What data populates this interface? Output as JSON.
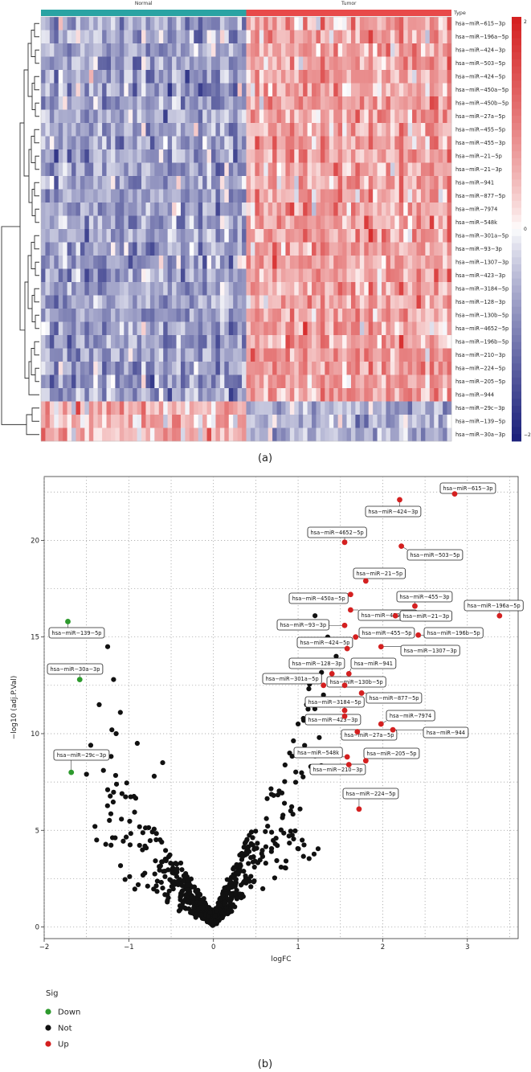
{
  "colors": {
    "normal": "#2aa3a3",
    "tumor": "#e84a4a",
    "heat_low": "#1a1f7a",
    "heat_mid": "#ffffff",
    "heat_high": "#d41f1f",
    "down": "#2e9a2e",
    "not": "#111111",
    "up": "#d42020",
    "grid": "#9a9a9a"
  },
  "chart_data": [
    {
      "type": "heatmap",
      "panel_label": "(a)",
      "annotation_track": {
        "title": "Type",
        "groups": [
          {
            "name": "Normal",
            "count": 47
          },
          {
            "name": "Tumor",
            "count": 47
          }
        ]
      },
      "rows": [
        "hsa-miR-615-3p",
        "hsa-miR-196a-5p",
        "hsa-miR-424-3p",
        "hsa-miR-503-5p",
        "hsa-miR-424-5p",
        "hsa-miR-450a-5p",
        "hsa-miR-450b-5p",
        "hsa-miR-27a-5p",
        "hsa-miR-455-5p",
        "hsa-miR-455-3p",
        "hsa-miR-21-5p",
        "hsa-miR-21-3p",
        "hsa-miR-941",
        "hsa-miR-877-5p",
        "hsa-miR-7974",
        "hsa-miR-548k",
        "hsa-miR-301a-5p",
        "hsa-miR-93-3p",
        "hsa-miR-1307-3p",
        "hsa-miR-423-3p",
        "hsa-miR-3184-5p",
        "hsa-miR-128-3p",
        "hsa-miR-130b-5p",
        "hsa-miR-4652-5p",
        "hsa-miR-196b-5p",
        "hsa-miR-210-3p",
        "hsa-miR-224-5p",
        "hsa-miR-205-5p",
        "hsa-miR-944",
        "hsa-miR-29c-3p",
        "hsa-miR-139-5p",
        "hsa-miR-30a-3p"
      ],
      "row_trend_tumor_vs_normal": [
        "up",
        "up",
        "up",
        "up",
        "up",
        "up",
        "up",
        "up",
        "up",
        "up",
        "up",
        "up",
        "up",
        "up",
        "up",
        "up",
        "up",
        "up",
        "up",
        "up",
        "up",
        "up",
        "up",
        "up",
        "up",
        "up",
        "up",
        "up",
        "up",
        "down",
        "down",
        "down"
      ],
      "color_scale": {
        "min": -2,
        "max": 2,
        "ticks": [
          "2",
          "0",
          "-2"
        ]
      }
    },
    {
      "type": "scatter",
      "panel_label": "(b)",
      "xlabel": "logFC",
      "ylabel": "-log10 (adj.P.Val)",
      "xlim": [
        -2,
        3.6
      ],
      "ylim": [
        -0.6,
        23.3
      ],
      "x_ticks": [
        "-2",
        "-1",
        "0",
        "1",
        "2",
        "3"
      ],
      "y_ticks": [
        "0",
        "5",
        "10",
        "15",
        "20"
      ],
      "x_tick_values": [
        -2,
        -1,
        0,
        1,
        2,
        3
      ],
      "y_tick_values": [
        0,
        5,
        10,
        15,
        20
      ],
      "grid": true,
      "legend": {
        "title": "Sig",
        "entries": [
          {
            "label": "Down",
            "color": "#2e9a2e"
          },
          {
            "label": "Not",
            "color": "#111111"
          },
          {
            "label": "Up",
            "color": "#d42020"
          }
        ]
      },
      "labeled_points": [
        {
          "label": "hsa-miR-615-3p",
          "x": 2.85,
          "y": 22.4,
          "sig": "Up"
        },
        {
          "label": "hsa-miR-424-3p",
          "x": 2.2,
          "y": 22.1,
          "sig": "Up"
        },
        {
          "label": "hsa-miR-4652-5p",
          "x": 1.55,
          "y": 19.9,
          "sig": "Up"
        },
        {
          "label": "hsa-miR-503-5p",
          "x": 2.22,
          "y": 19.7,
          "sig": "Up"
        },
        {
          "label": "hsa-miR-21-5p",
          "x": 1.8,
          "y": 17.9,
          "sig": "Up"
        },
        {
          "label": "hsa-miR-450a-5p",
          "x": 1.62,
          "y": 17.2,
          "sig": "Up"
        },
        {
          "label": "hsa-miR-455-3p",
          "x": 2.38,
          "y": 16.6,
          "sig": "Up"
        },
        {
          "label": "hsa-miR-196a-5p",
          "x": 3.38,
          "y": 16.1,
          "sig": "Up"
        },
        {
          "label": "hsa-miR-450b-5p",
          "x": 1.62,
          "y": 16.4,
          "sig": "Up"
        },
        {
          "label": "hsa-miR-21-3p",
          "x": 2.15,
          "y": 16.1,
          "sig": "Up"
        },
        {
          "label": "hsa-miR-93-3p",
          "x": 1.55,
          "y": 15.6,
          "sig": "Up"
        },
        {
          "label": "hsa-miR-196b-5p",
          "x": 2.42,
          "y": 15.1,
          "sig": "Up"
        },
        {
          "label": "hsa-miR-455-5p",
          "x": 1.68,
          "y": 15.0,
          "sig": "Up"
        },
        {
          "label": "hsa-miR-424-5p",
          "x": 1.58,
          "y": 14.4,
          "sig": "Up"
        },
        {
          "label": "hsa-miR-1307-3p",
          "x": 1.98,
          "y": 14.5,
          "sig": "Up"
        },
        {
          "label": "hsa-miR-941",
          "x": 1.6,
          "y": 13.1,
          "sig": "Up"
        },
        {
          "label": "hsa-miR-128-3p",
          "x": 1.4,
          "y": 13.1,
          "sig": "Up"
        },
        {
          "label": "hsa-miR-301a-5p",
          "x": 1.3,
          "y": 12.5,
          "sig": "Up"
        },
        {
          "label": "hsa-miR-130b-5p",
          "x": 1.55,
          "y": 12.5,
          "sig": "Up"
        },
        {
          "label": "hsa-miR-877-5p",
          "x": 1.75,
          "y": 12.1,
          "sig": "Up"
        },
        {
          "label": "hsa-miR-3184-5p",
          "x": 1.55,
          "y": 11.2,
          "sig": "Up"
        },
        {
          "label": "hsa-miR-7974",
          "x": 1.98,
          "y": 10.5,
          "sig": "Up"
        },
        {
          "label": "hsa-miR-423-3p",
          "x": 1.55,
          "y": 10.9,
          "sig": "Up"
        },
        {
          "label": "hsa-miR-944",
          "x": 2.12,
          "y": 10.2,
          "sig": "Up"
        },
        {
          "label": "hsa-miR-27a-5p",
          "x": 1.7,
          "y": 10.1,
          "sig": "Up"
        },
        {
          "label": "hsa-miR-548k",
          "x": 1.58,
          "y": 8.8,
          "sig": "Up"
        },
        {
          "label": "hsa-miR-205-5p",
          "x": 1.8,
          "y": 8.6,
          "sig": "Up"
        },
        {
          "label": "hsa-miR-210-3p",
          "x": 1.6,
          "y": 8.4,
          "sig": "Up"
        },
        {
          "label": "hsa-miR-224-5p",
          "x": 1.72,
          "y": 6.1,
          "sig": "Up"
        },
        {
          "label": "hsa-miR-139-5p",
          "x": -1.72,
          "y": 15.8,
          "sig": "Down"
        },
        {
          "label": "hsa-miR-30a-3p",
          "x": -1.58,
          "y": 12.8,
          "sig": "Down"
        },
        {
          "label": "hsa-miR-29c-3p",
          "x": -1.68,
          "y": 8.0,
          "sig": "Down"
        }
      ],
      "background_points_shown": "unlabeled not-significant miRNAs (black)"
    }
  ]
}
